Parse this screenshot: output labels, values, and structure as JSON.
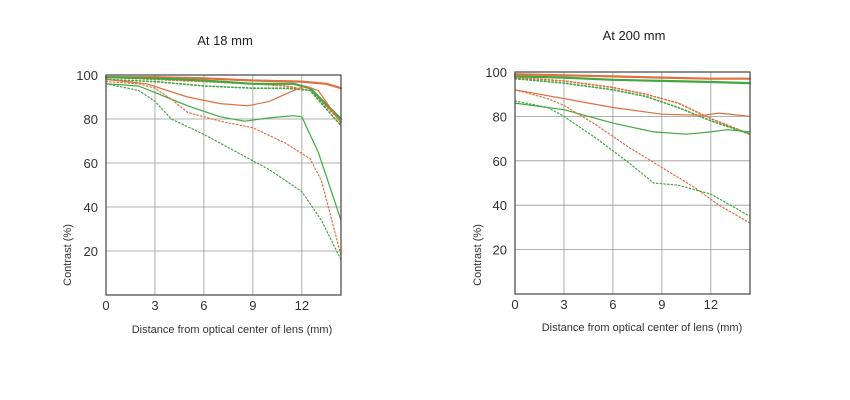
{
  "chart_data": [
    {
      "type": "line",
      "title": "At 18 mm",
      "xlabel": "Distance from optical center of lens (mm)",
      "ylabel": "Contrast (%)",
      "xlim": [
        0,
        14.4
      ],
      "ylim": [
        0,
        100
      ],
      "xticks": [
        "0",
        "3",
        "6",
        "9",
        "12"
      ],
      "yticks": [
        "20",
        "40",
        "60",
        "80",
        "100"
      ],
      "grid": true,
      "series": [
        {
          "color": "#e0703f",
          "style": "solid",
          "width": 2.2,
          "points": [
            [
              0,
              99
            ],
            [
              3,
              99
            ],
            [
              6,
              98.5
            ],
            [
              9,
              97.5
            ],
            [
              12,
              97
            ],
            [
              13.5,
              96
            ],
            [
              14.4,
              94
            ]
          ]
        },
        {
          "color": "#e0703f",
          "style": "dotted",
          "width": 1.6,
          "points": [
            [
              0,
              99
            ],
            [
              3,
              98
            ],
            [
              6,
              97
            ],
            [
              9,
              96
            ],
            [
              11,
              95
            ],
            [
              12.5,
              93
            ],
            [
              14.4,
              79
            ]
          ]
        },
        {
          "color": "#40a840",
          "style": "solid",
          "width": 2.2,
          "points": [
            [
              0,
              99
            ],
            [
              3,
              98.5
            ],
            [
              6,
              97.5
            ],
            [
              9,
              96
            ],
            [
              11.5,
              96
            ],
            [
              12.5,
              94
            ],
            [
              14.4,
              80
            ]
          ]
        },
        {
          "color": "#40a840",
          "style": "dotted",
          "width": 1.6,
          "points": [
            [
              0,
              98
            ],
            [
              3,
              97
            ],
            [
              6,
              95
            ],
            [
              9,
              94
            ],
            [
              11,
              94
            ],
            [
              12.5,
              93
            ],
            [
              14.4,
              77
            ]
          ]
        },
        {
          "color": "#e0703f",
          "style": "solid",
          "width": 1.2,
          "points": [
            [
              0,
              98
            ],
            [
              2.5,
              96
            ],
            [
              5,
              90
            ],
            [
              7,
              87
            ],
            [
              8.7,
              86
            ],
            [
              10,
              88
            ],
            [
              11.5,
              93
            ],
            [
              12.2,
              95
            ],
            [
              13,
              93
            ],
            [
              14.4,
              78
            ]
          ]
        },
        {
          "color": "#40a840",
          "style": "solid",
          "width": 1.2,
          "points": [
            [
              0,
              96
            ],
            [
              2,
              95
            ],
            [
              3,
              92
            ],
            [
              5,
              86
            ],
            [
              7,
              81
            ],
            [
              8.5,
              79
            ],
            [
              10,
              80.5
            ],
            [
              11.5,
              81.5
            ],
            [
              12,
              81
            ],
            [
              13,
              65
            ],
            [
              14.4,
              34
            ]
          ]
        },
        {
          "color": "#e0703f",
          "style": "dotted",
          "width": 1.2,
          "points": [
            [
              0,
              97
            ],
            [
              2,
              96
            ],
            [
              3,
              94
            ],
            [
              4,
              89
            ],
            [
              5,
              83
            ],
            [
              7,
              79
            ],
            [
              9,
              76
            ],
            [
              11,
              69
            ],
            [
              12.5,
              62
            ],
            [
              13.2,
              52
            ],
            [
              14.4,
              18
            ]
          ]
        },
        {
          "color": "#40a840",
          "style": "dotted",
          "width": 1.2,
          "points": [
            [
              0,
              96
            ],
            [
              2,
              93
            ],
            [
              3,
              88
            ],
            [
              4,
              80
            ],
            [
              6,
              73
            ],
            [
              8,
              65
            ],
            [
              10,
              57
            ],
            [
              12,
              47
            ],
            [
              13.2,
              34
            ],
            [
              14.4,
              16
            ]
          ]
        }
      ]
    },
    {
      "type": "line",
      "title": "At 200 mm",
      "xlabel": "Distance from optical center of lens (mm)",
      "ylabel": "Contrast (%)",
      "xlim": [
        0,
        14.4
      ],
      "ylim": [
        0,
        100
      ],
      "xticks": [
        "0",
        "3",
        "6",
        "9",
        "12"
      ],
      "yticks": [
        "20",
        "40",
        "60",
        "80",
        "100"
      ],
      "grid": true,
      "series": [
        {
          "color": "#e0703f",
          "style": "solid",
          "width": 2.2,
          "points": [
            [
              0,
              99
            ],
            [
              3,
              98.5
            ],
            [
              6,
              98
            ],
            [
              9,
              97.5
            ],
            [
              12,
              97
            ],
            [
              14.4,
              97
            ]
          ]
        },
        {
          "color": "#40a840",
          "style": "solid",
          "width": 2.2,
          "points": [
            [
              0,
              98
            ],
            [
              3,
              97.5
            ],
            [
              6,
              96.5
            ],
            [
              9,
              96
            ],
            [
              12,
              95.5
            ],
            [
              14.4,
              95
            ]
          ]
        },
        {
          "color": "#e0703f",
          "style": "dotted",
          "width": 1.6,
          "points": [
            [
              0,
              97.5
            ],
            [
              3,
              96
            ],
            [
              6,
              93
            ],
            [
              8,
              90
            ],
            [
              10,
              86
            ],
            [
              12,
              79
            ],
            [
              14.4,
              72
            ]
          ]
        },
        {
          "color": "#40a840",
          "style": "dotted",
          "width": 1.6,
          "points": [
            [
              0,
              97
            ],
            [
              3,
              95
            ],
            [
              6,
              92
            ],
            [
              8,
              89
            ],
            [
              10,
              84
            ],
            [
              12,
              78
            ],
            [
              14.4,
              72
            ]
          ]
        },
        {
          "color": "#e0703f",
          "style": "solid",
          "width": 1.2,
          "points": [
            [
              0,
              92
            ],
            [
              3,
              88
            ],
            [
              6,
              84
            ],
            [
              9,
              81
            ],
            [
              11.5,
              80.5
            ],
            [
              12.5,
              81.5
            ],
            [
              14.4,
              80
            ]
          ]
        },
        {
          "color": "#40a840",
          "style": "solid",
          "width": 1.2,
          "points": [
            [
              0,
              86
            ],
            [
              3,
              83
            ],
            [
              6,
              77
            ],
            [
              8.5,
              73
            ],
            [
              10.5,
              72
            ],
            [
              12,
              73
            ],
            [
              13,
              74
            ],
            [
              14.4,
              73
            ]
          ]
        },
        {
          "color": "#e0703f",
          "style": "dotted",
          "width": 1.2,
          "points": [
            [
              0,
              92
            ],
            [
              2,
              88
            ],
            [
              3,
              85
            ],
            [
              5,
              76
            ],
            [
              7,
              66
            ],
            [
              9,
              57
            ],
            [
              11,
              48
            ],
            [
              12.5,
              40
            ],
            [
              14.4,
              32
            ]
          ]
        },
        {
          "color": "#40a840",
          "style": "dotted",
          "width": 1.2,
          "points": [
            [
              0,
              87
            ],
            [
              2,
              84
            ],
            [
              3,
              80
            ],
            [
              5,
              70
            ],
            [
              7,
              59
            ],
            [
              8.5,
              50
            ],
            [
              10,
              49
            ],
            [
              12,
              45
            ],
            [
              14.4,
              35
            ]
          ]
        }
      ]
    }
  ]
}
